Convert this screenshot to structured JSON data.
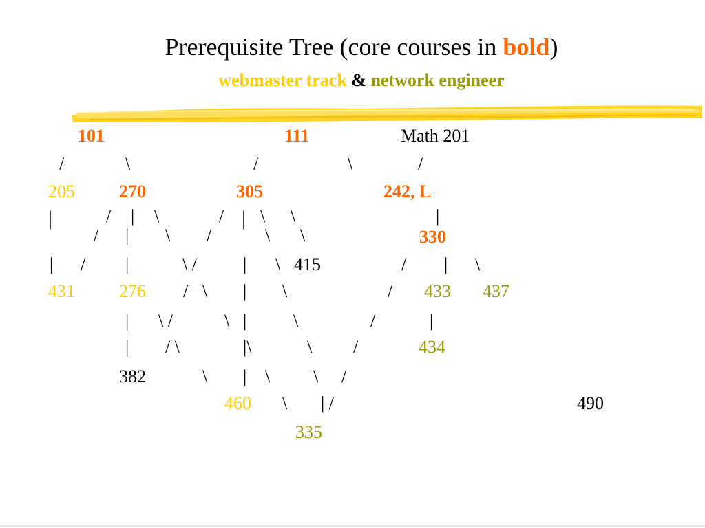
{
  "title": {
    "text_prefix": "Prerequisite Tree (core courses in ",
    "bold_word": "bold",
    "text_suffix": ")"
  },
  "subtitle": {
    "part1": "webmaster track",
    "sep": " & ",
    "part2": "network engineer"
  },
  "colors": {
    "core": "#ff6600",
    "webmaster": "#ffcc00",
    "network": "#999900",
    "plain": "#000000"
  },
  "courses": {
    "c101": "101",
    "c111": "111",
    "math201": "Math 201",
    "c205": "205",
    "c270": "270",
    "c305": "305",
    "c242": "242, L",
    "c330": "330",
    "c415": "415",
    "c431": "431",
    "c276": "276",
    "c433": "433",
    "c437": "437",
    "c434": "434",
    "c382": "382",
    "c460": "460",
    "c490": "490",
    "c335": "335"
  },
  "connectors": {
    "row1": [
      "/",
      "\\",
      "/",
      "\\",
      "/"
    ],
    "row2": [
      "|",
      "/",
      "|",
      "\\",
      "/",
      "|",
      "\\",
      "\\",
      "|"
    ],
    "row3": [
      "|",
      "/",
      "|",
      "\\",
      "/",
      "|",
      "\\",
      "\\"
    ],
    "row4": [
      "|",
      "/",
      "|",
      "\\ /",
      "|",
      "\\",
      "/",
      "|",
      "\\"
    ],
    "row5": [
      "/",
      "\\",
      "|",
      "\\",
      "/"
    ],
    "row6": [
      "|",
      "\\ /",
      "\\",
      "|",
      "\\",
      "/",
      "|"
    ],
    "row7": [
      "|",
      "/ \\",
      "|\\",
      "\\",
      "/"
    ],
    "row8": [
      "\\",
      "|",
      "\\",
      "\\",
      "/"
    ],
    "row9": [
      "\\",
      "| /"
    ]
  }
}
